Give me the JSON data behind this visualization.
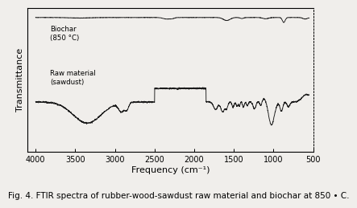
{
  "xlabel": "Frequency (cm⁻¹)",
  "ylabel": "Transmittance",
  "caption": "Fig. 4. FTIR spectra of rubber-wood-sawdust raw material and biochar at 850 • C.",
  "biochar_label": "Biochar\n(850 °C)",
  "rawmat_label": "Raw material\n(sawdust)",
  "background_color": "#f0eeeb",
  "plot_bg": "#f0eeeb",
  "line_color": "#1a1a1a",
  "tick_label_fontsize": 7,
  "axis_label_fontsize": 8,
  "caption_fontsize": 7.5
}
